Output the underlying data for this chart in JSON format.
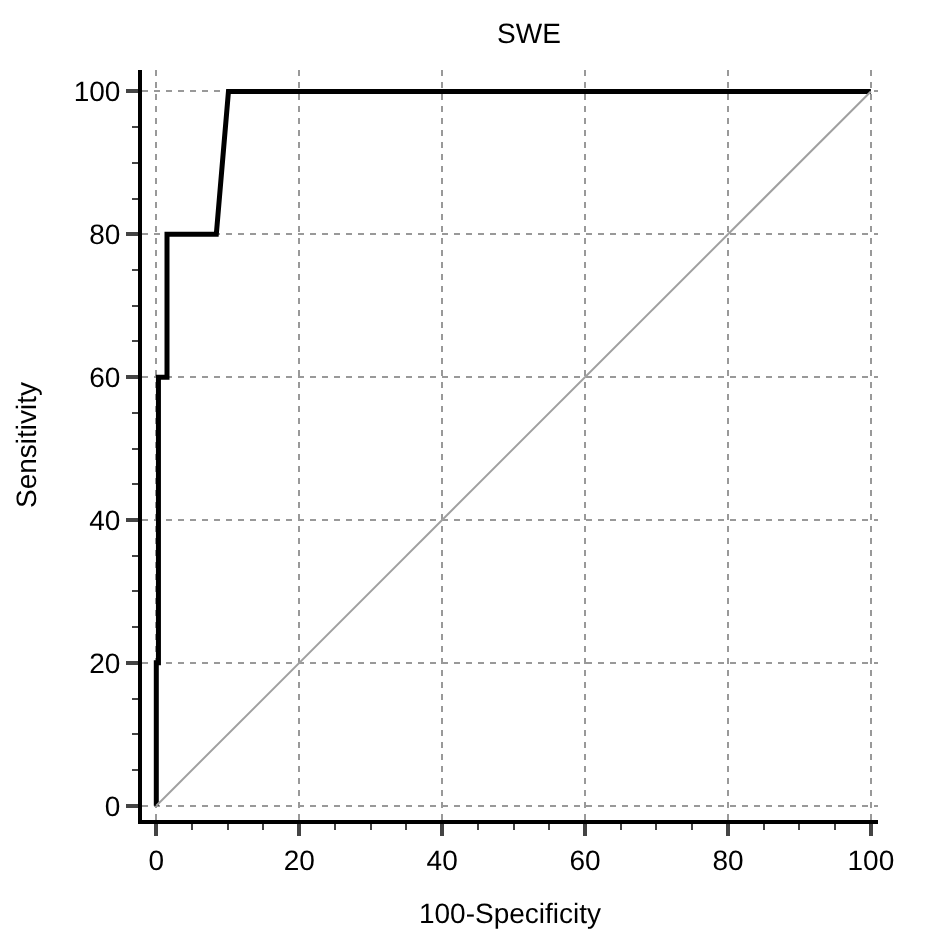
{
  "chart_data": {
    "type": "line",
    "title": "SWE",
    "xlabel": "100-Specificity",
    "ylabel": "Sensitivity",
    "xlim": [
      -2,
      101
    ],
    "ylim": [
      -2,
      103
    ],
    "xticks": [
      0,
      20,
      40,
      60,
      80,
      100
    ],
    "yticks": [
      0,
      20,
      40,
      60,
      80,
      100
    ],
    "grid": true,
    "legend": false,
    "marker": "none",
    "series": [
      {
        "color": "#000000",
        "x": [
          0,
          0,
          0.3,
          0.3,
          1.5,
          1.5,
          8.4,
          10.1,
          100
        ],
        "values": [
          0,
          20,
          20,
          60,
          60,
          80,
          80,
          100,
          100
        ]
      },
      {
        "color": "#a0a0a0",
        "x": [
          0,
          100
        ],
        "values": [
          0,
          100
        ]
      }
    ]
  }
}
